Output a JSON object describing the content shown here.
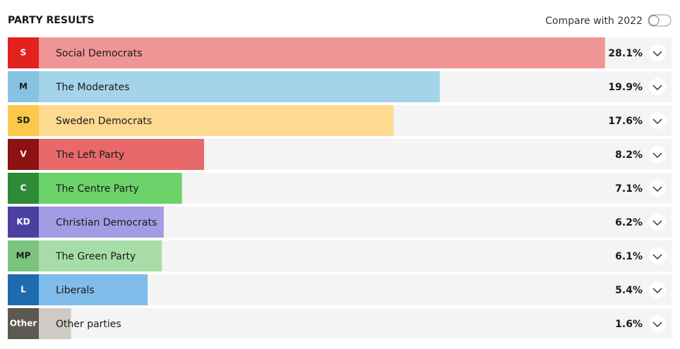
{
  "chart_data": {
    "type": "bar",
    "orientation": "horizontal",
    "title": "PARTY RESULTS",
    "abbreviations": [
      "S",
      "M",
      "SD",
      "V",
      "C",
      "KD",
      "MP",
      "L",
      "Other"
    ],
    "categories": [
      "Social Democrats",
      "The Moderates",
      "Sweden Democrats",
      "The Left Party",
      "The Centre Party",
      "Christian Democrats",
      "The Green Party",
      "Liberals",
      "Other parties"
    ],
    "values": [
      28.1,
      19.9,
      17.6,
      8.2,
      7.1,
      6.2,
      6.1,
      5.4,
      1.6
    ],
    "value_labels": [
      "28.1%",
      "19.9%",
      "17.6%",
      "8.2%",
      "7.1%",
      "6.2%",
      "6.1%",
      "5.4%",
      "1.6%"
    ],
    "colors": [
      "#f09596",
      "#a4d3ea",
      "#fdda90",
      "#e8696b",
      "#6bd36a",
      "#a39ce4",
      "#a8dca7",
      "#80bcea",
      "#cfcbc4"
    ],
    "badge_colors": [
      "#e3221f",
      "#86c2e2",
      "#fbc84b",
      "#8d1212",
      "#2f8a37",
      "#4b40a0",
      "#7cc47e",
      "#1e6bb0",
      "#5c5852"
    ],
    "badge_text_colors": [
      "#ffffff",
      "#1a1a1a",
      "#1a1a1a",
      "#ffffff",
      "#ffffff",
      "#ffffff",
      "#1a1a1a",
      "#ffffff",
      "#ffffff"
    ],
    "xlim": [
      0,
      31.4
    ]
  },
  "controls": {
    "compare_label": "Compare with 2022",
    "compare_enabled": false
  }
}
